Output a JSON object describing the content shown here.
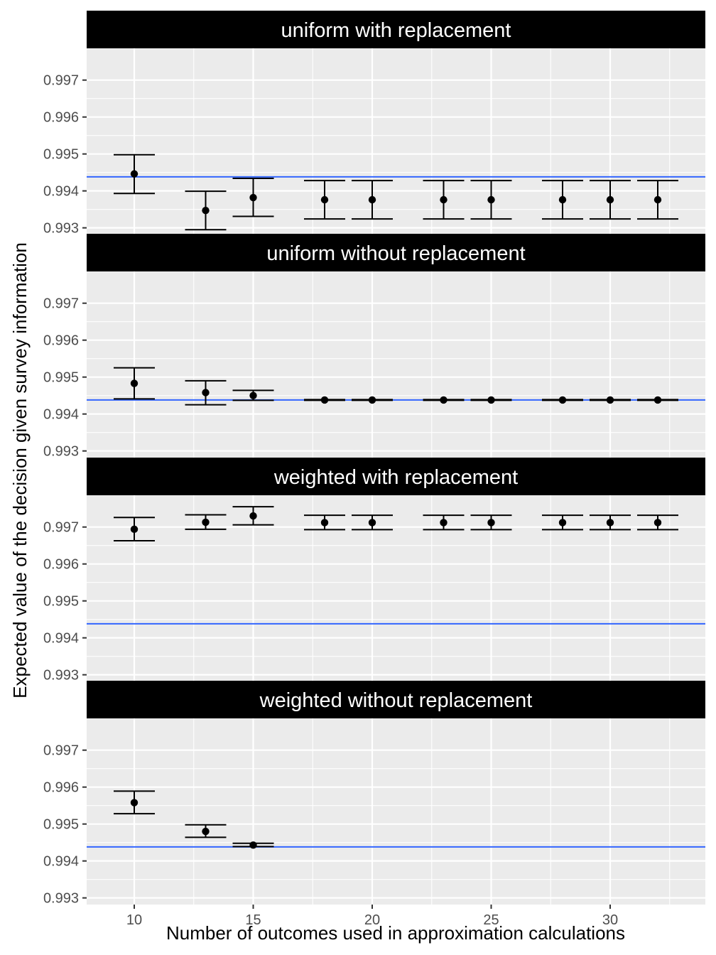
{
  "chart_data": {
    "type": "scatter",
    "error_bars": true,
    "xlabel": "Number of outcomes used in approximation calculations",
    "ylabel": "Expected value of the decision given survey information",
    "x_ticks": [
      10,
      15,
      20,
      25,
      30
    ],
    "xlim": [
      8,
      34
    ],
    "y_ticks": [
      0.993,
      0.994,
      0.995,
      0.996,
      0.997
    ],
    "ylim": [
      0.99282,
      0.99786
    ],
    "reference_line": 0.99438,
    "colors": {
      "panel_bg": "#ebebeb",
      "grid": "#ffffff",
      "strip_bg": "#000000",
      "strip_text": "#ffffff",
      "reference_line": "#3366ff",
      "points": "#000000"
    },
    "panels": [
      {
        "label": "uniform with replacement",
        "points": [
          {
            "x": 10,
            "y": 0.99446,
            "lo": 0.99393,
            "hi": 0.99498
          },
          {
            "x": 13,
            "y": 0.99347,
            "lo": 0.99295,
            "hi": 0.99399
          },
          {
            "x": 15,
            "y": 0.99382,
            "lo": 0.99331,
            "hi": 0.99434
          },
          {
            "x": 18,
            "y": 0.99376,
            "lo": 0.99324,
            "hi": 0.99428
          },
          {
            "x": 20,
            "y": 0.99376,
            "lo": 0.99324,
            "hi": 0.99428
          },
          {
            "x": 23,
            "y": 0.99376,
            "lo": 0.99324,
            "hi": 0.99428
          },
          {
            "x": 25,
            "y": 0.99376,
            "lo": 0.99324,
            "hi": 0.99428
          },
          {
            "x": 28,
            "y": 0.99376,
            "lo": 0.99324,
            "hi": 0.99428
          },
          {
            "x": 30,
            "y": 0.99376,
            "lo": 0.99324,
            "hi": 0.99428
          },
          {
            "x": 32,
            "y": 0.99376,
            "lo": 0.99324,
            "hi": 0.99428
          }
        ]
      },
      {
        "label": "uniform without replacement",
        "points": [
          {
            "x": 10,
            "y": 0.99483,
            "lo": 0.99441,
            "hi": 0.99525
          },
          {
            "x": 13,
            "y": 0.99458,
            "lo": 0.99425,
            "hi": 0.9949
          },
          {
            "x": 15,
            "y": 0.9945,
            "lo": 0.99437,
            "hi": 0.99464
          },
          {
            "x": 18,
            "y": 0.99438,
            "lo": 0.99437,
            "hi": 0.99439
          },
          {
            "x": 20,
            "y": 0.99438,
            "lo": 0.99437,
            "hi": 0.99439
          },
          {
            "x": 23,
            "y": 0.99438,
            "lo": 0.99437,
            "hi": 0.99439
          },
          {
            "x": 25,
            "y": 0.99438,
            "lo": 0.99437,
            "hi": 0.99439
          },
          {
            "x": 28,
            "y": 0.99438,
            "lo": 0.99437,
            "hi": 0.99439
          },
          {
            "x": 30,
            "y": 0.99438,
            "lo": 0.99437,
            "hi": 0.99439
          },
          {
            "x": 32,
            "y": 0.99438,
            "lo": 0.99437,
            "hi": 0.99439
          }
        ]
      },
      {
        "label": "weighted with replacement",
        "points": [
          {
            "x": 10,
            "y": 0.99694,
            "lo": 0.99663,
            "hi": 0.99726
          },
          {
            "x": 13,
            "y": 0.99713,
            "lo": 0.99694,
            "hi": 0.99733
          },
          {
            "x": 15,
            "y": 0.9973,
            "lo": 0.99706,
            "hi": 0.99755
          },
          {
            "x": 18,
            "y": 0.99712,
            "lo": 0.99693,
            "hi": 0.99732
          },
          {
            "x": 20,
            "y": 0.99712,
            "lo": 0.99693,
            "hi": 0.99732
          },
          {
            "x": 23,
            "y": 0.99712,
            "lo": 0.99693,
            "hi": 0.99732
          },
          {
            "x": 25,
            "y": 0.99712,
            "lo": 0.99693,
            "hi": 0.99732
          },
          {
            "x": 28,
            "y": 0.99712,
            "lo": 0.99693,
            "hi": 0.99732
          },
          {
            "x": 30,
            "y": 0.99712,
            "lo": 0.99693,
            "hi": 0.99732
          },
          {
            "x": 32,
            "y": 0.99712,
            "lo": 0.99693,
            "hi": 0.99732
          }
        ]
      },
      {
        "label": "weighted without replacement",
        "points": [
          {
            "x": 10,
            "y": 0.99558,
            "lo": 0.99528,
            "hi": 0.99589
          },
          {
            "x": 13,
            "y": 0.9948,
            "lo": 0.99464,
            "hi": 0.99498
          },
          {
            "x": 15,
            "y": 0.99443,
            "lo": 0.99439,
            "hi": 0.99448
          }
        ]
      }
    ]
  }
}
